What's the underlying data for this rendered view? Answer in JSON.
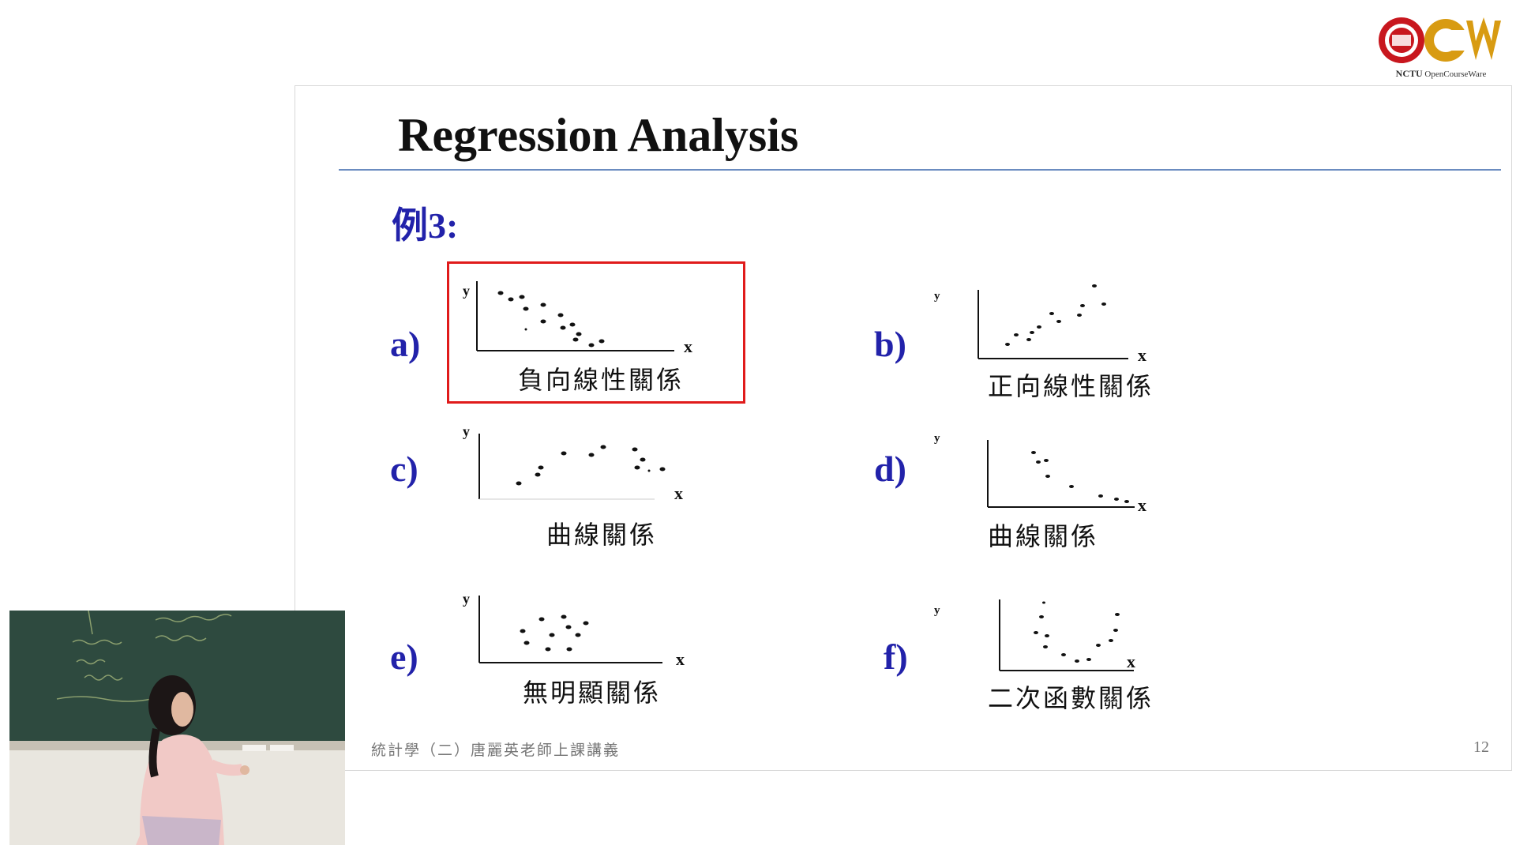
{
  "slide": {
    "title": "Regression Analysis",
    "example": "例3:",
    "footer": "統計學（二）唐麗英老師上課講義",
    "page_number": "12"
  },
  "panels": [
    {
      "id": "a",
      "label": "a)",
      "caption": "負向線性關係",
      "y_axis": "y",
      "x_axis": "x",
      "highlighted": true
    },
    {
      "id": "b",
      "label": "b)",
      "caption": "正向線性關係",
      "y_axis": "y",
      "x_axis": "x"
    },
    {
      "id": "c",
      "label": "c)",
      "caption": "曲線關係",
      "y_axis": "y",
      "x_axis": "x"
    },
    {
      "id": "d",
      "label": "d)",
      "caption": "曲線關係",
      "y_axis": "y",
      "x_axis": "x"
    },
    {
      "id": "e",
      "label": "e)",
      "caption": "無明顯關係",
      "y_axis": "y",
      "x_axis": "x"
    },
    {
      "id": "f",
      "label": "f)",
      "caption": "二次函數關係",
      "y_axis": "y",
      "x_axis": "x"
    }
  ],
  "logo": {
    "org": "NCTU",
    "name": "OpenCourseWare"
  },
  "colors": {
    "label_blue": "#2222aa",
    "highlight": "#e01b1b",
    "rule": "#6b8cc0"
  }
}
